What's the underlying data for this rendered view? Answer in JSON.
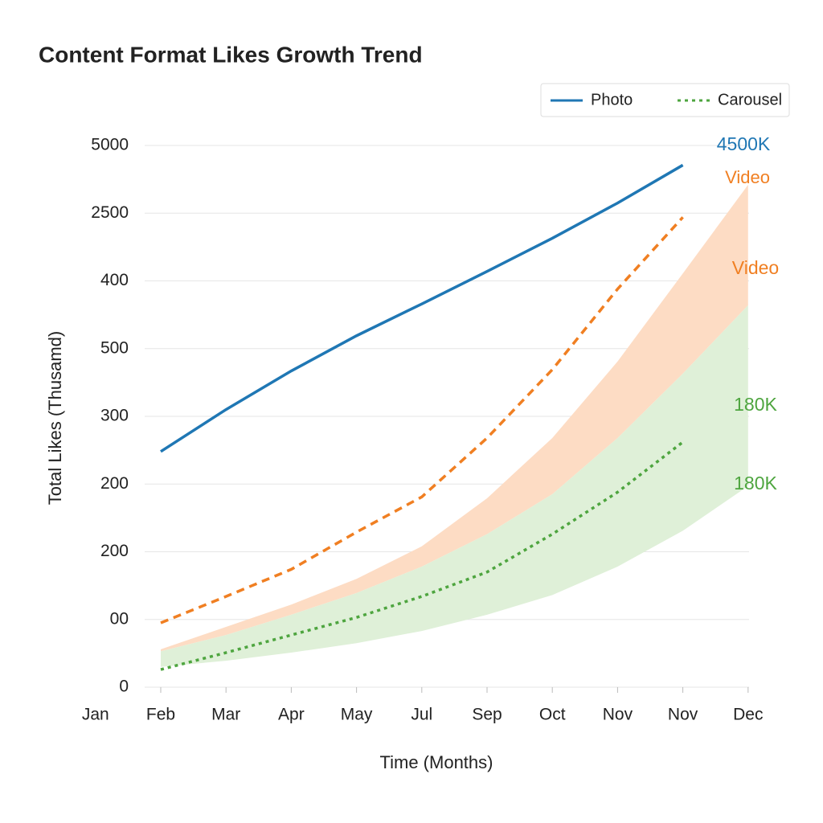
{
  "chart_data": {
    "type": "line",
    "title": "Content Format Likes Growth Trend",
    "x_label": "Time (Months)",
    "y_label": "Total Likes (Thusamd)",
    "categories": [
      "Jan",
      "Feb",
      "Mar",
      "Apr",
      "May",
      "Jul",
      "Sep",
      "Oct",
      "Nov",
      "Nov",
      "Dec"
    ],
    "ylim": [
      0,
      8
    ],
    "yticks": [
      0,
      {
        "value": 1,
        "label": "00"
      },
      {
        "value": 2,
        "label": "200"
      },
      {
        "value": 3,
        "label": "200"
      },
      {
        "value": 4,
        "label": "300"
      },
      {
        "value": 5,
        "label": "500"
      },
      {
        "value": 6,
        "label": "400"
      },
      {
        "value": 7,
        "label": "2500"
      },
      {
        "value": 8,
        "label": "5000"
      }
    ],
    "grid": true,
    "legend": "top-right",
    "series": [
      {
        "name": "Photo",
        "color": "#1f77b4",
        "style": "solid",
        "in_legend": true,
        "values": [
          null,
          3.48,
          4.1,
          4.67,
          5.19,
          5.66,
          6.14,
          6.63,
          7.15,
          7.71,
          null
        ]
      },
      {
        "name": "Video",
        "color": "#f07f22",
        "style": "dashed",
        "in_legend": false,
        "values": [
          null,
          0.95,
          1.34,
          1.74,
          2.29,
          2.81,
          3.68,
          4.69,
          5.88,
          6.94,
          null
        ]
      },
      {
        "name": "Carousel",
        "color": "#4ea53f",
        "style": "dotted",
        "in_legend": true,
        "values": [
          null,
          0.26,
          0.51,
          0.77,
          1.03,
          1.34,
          1.7,
          2.26,
          2.88,
          3.62,
          null
        ]
      }
    ],
    "bands": [
      {
        "color": "#fddcc4",
        "upper": [
          null,
          0.56,
          0.89,
          1.22,
          1.6,
          2.08,
          2.79,
          3.68,
          4.81,
          6.11,
          7.42
        ],
        "lower": [
          null,
          0.53,
          0.77,
          1.07,
          1.39,
          1.78,
          2.26,
          2.85,
          3.68,
          4.63,
          5.64
        ]
      },
      {
        "color": "#dff0d8",
        "upper": [
          null,
          0.53,
          0.77,
          1.07,
          1.39,
          1.78,
          2.26,
          2.85,
          3.68,
          4.63,
          5.64
        ],
        "lower": [
          null,
          0.3,
          0.39,
          0.51,
          0.65,
          0.83,
          1.07,
          1.36,
          1.78,
          2.31,
          2.97
        ]
      }
    ],
    "annotations": [
      {
        "text": "4500K",
        "color": "#1f77b4"
      },
      {
        "text": "Video",
        "color": "#f07f22"
      },
      {
        "text": "180K",
        "color": "#4ea53f"
      },
      {
        "text": "180K",
        "color": "#4ea53f"
      }
    ]
  }
}
